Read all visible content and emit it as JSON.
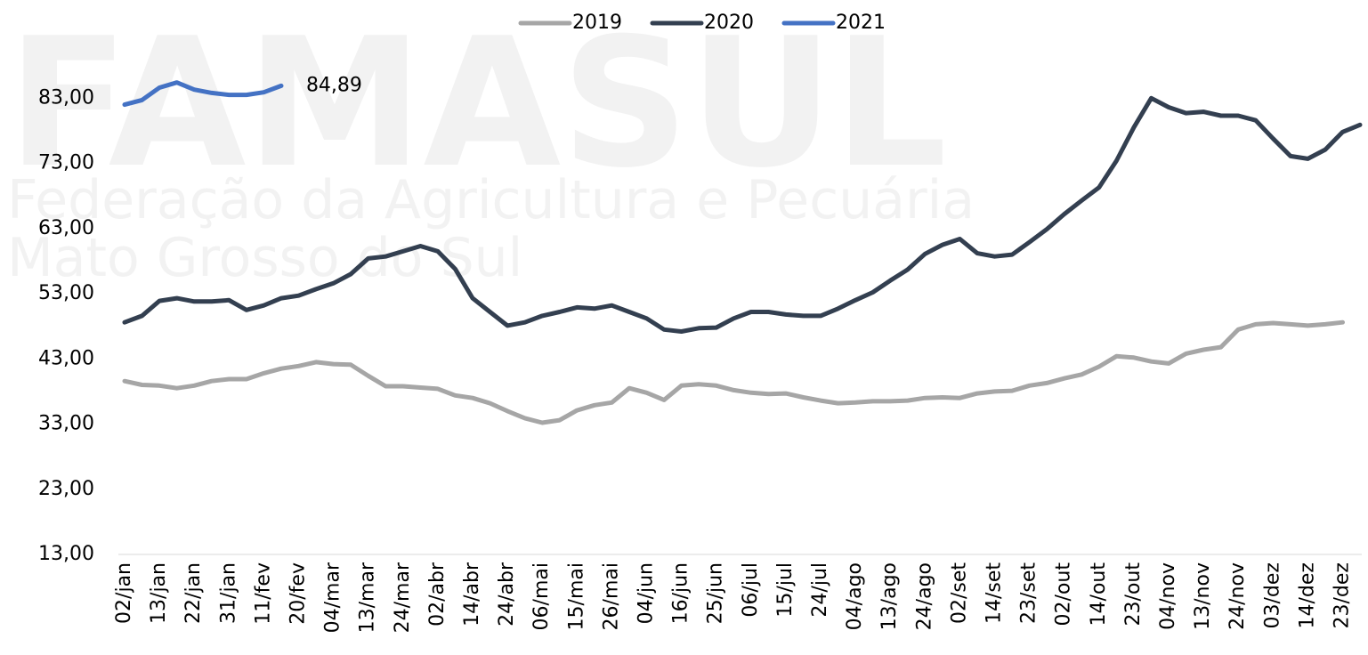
{
  "watermark": [
    "FAMASUL",
    "Federação da Agricultura e Pecuária",
    "Mato Grosso do Sul"
  ],
  "chart_data": {
    "type": "line",
    "categories": [
      "02/jan",
      null,
      "13/jan",
      null,
      "22/jan",
      null,
      "31/jan",
      null,
      "11/fev",
      null,
      "20/fev",
      null,
      "04/mar",
      null,
      "13/mar",
      null,
      "24/mar",
      null,
      "02/abr",
      null,
      "14/abr",
      null,
      "24/abr",
      null,
      "06/mai",
      null,
      "15/mai",
      null,
      "26/mai",
      null,
      "04/jun",
      null,
      "16/jun",
      null,
      "25/jun",
      null,
      "06/jul",
      null,
      "15/jul",
      null,
      "24/jul",
      null,
      "04/ago",
      null,
      "13/ago",
      null,
      "24/ago",
      null,
      "02/set",
      null,
      "14/set",
      null,
      "23/set",
      null,
      "02/out",
      null,
      "14/out",
      null,
      "23/out",
      null,
      "04/nov",
      null,
      "13/nov",
      null,
      "24/nov",
      null,
      "03/dez",
      null,
      "14/dez",
      null,
      "23/dez",
      null
    ],
    "series": [
      {
        "name": "2019",
        "color": "#a6a6a6",
        "values": [
          39.6,
          39.0,
          38.9,
          38.5,
          38.9,
          39.6,
          39.9,
          39.9,
          40.8,
          41.5,
          41.9,
          42.5,
          42.2,
          42.1,
          40.4,
          38.8,
          38.8,
          38.6,
          38.4,
          37.4,
          37.0,
          36.2,
          35.0,
          33.9,
          33.2,
          33.6,
          35.1,
          35.9,
          36.3,
          38.5,
          37.8,
          36.7,
          38.9,
          39.1,
          38.9,
          38.2,
          37.8,
          37.6,
          37.7,
          37.1,
          36.6,
          36.2,
          36.3,
          36.5,
          36.5,
          36.6,
          37.0,
          37.1,
          37.0,
          37.7,
          38.0,
          38.1,
          38.9,
          39.3,
          40.0,
          40.6,
          41.8,
          43.4,
          43.2,
          42.6,
          42.3,
          43.8,
          44.4,
          44.8,
          47.5,
          48.3,
          48.5,
          48.3,
          48.1,
          48.3,
          48.6,
          null
        ]
      },
      {
        "name": "2020",
        "color": "#333f50",
        "values": [
          48.6,
          49.6,
          51.9,
          52.3,
          51.8,
          51.8,
          52.0,
          50.5,
          51.2,
          52.3,
          52.7,
          53.7,
          54.6,
          56.0,
          58.4,
          58.7,
          59.5,
          60.3,
          59.5,
          56.8,
          52.3,
          50.2,
          48.1,
          48.6,
          49.6,
          50.2,
          50.9,
          50.7,
          51.2,
          50.2,
          49.2,
          47.5,
          47.2,
          47.7,
          47.8,
          49.2,
          50.2,
          50.2,
          49.8,
          49.6,
          49.6,
          50.7,
          52.0,
          53.2,
          55.0,
          56.7,
          59.1,
          60.5,
          61.4,
          59.2,
          58.7,
          59.0,
          60.9,
          62.9,
          65.2,
          67.3,
          69.3,
          73.4,
          78.5,
          83.0,
          81.6,
          80.7,
          80.9,
          80.3,
          80.3,
          79.6,
          76.8,
          74.1,
          73.7,
          75.1,
          77.8,
          78.9
        ]
      },
      {
        "name": "2021",
        "color": "#4472c4",
        "values": [
          82.0,
          82.7,
          84.6,
          85.4,
          84.3,
          83.8,
          83.5,
          83.5,
          83.9,
          84.89,
          null,
          null,
          null,
          null,
          null,
          null,
          null,
          null,
          null,
          null,
          null,
          null,
          null,
          null,
          null,
          null,
          null,
          null,
          null,
          null,
          null,
          null,
          null,
          null,
          null,
          null,
          null,
          null,
          null,
          null,
          null,
          null,
          null,
          null,
          null,
          null,
          null,
          null,
          null,
          null,
          null,
          null,
          null,
          null,
          null,
          null,
          null,
          null,
          null,
          null,
          null,
          null,
          null,
          null,
          null,
          null,
          null,
          null,
          null,
          null,
          null,
          null
        ],
        "value_labels": [
          null,
          null,
          null,
          null,
          null,
          null,
          null,
          null,
          null,
          "84,89",
          null,
          null,
          null,
          null,
          null,
          null,
          null,
          null,
          null,
          null,
          null,
          null,
          null,
          null,
          null,
          null,
          null,
          null,
          null,
          null,
          null,
          null,
          null,
          null,
          null,
          null,
          null,
          null,
          null,
          null,
          null,
          null,
          null,
          null,
          null,
          null,
          null,
          null,
          null,
          null,
          null,
          null,
          null,
          null,
          null,
          null,
          null,
          null,
          null,
          null,
          null,
          null,
          null,
          null,
          null,
          null,
          null,
          null,
          null,
          null,
          null,
          null
        ]
      }
    ],
    "ylim": [
      13,
      93
    ],
    "yticks": [
      {
        "value": 13,
        "label": "13,00"
      },
      {
        "value": 23,
        "label": "23,00"
      },
      {
        "value": 33,
        "label": "33,00"
      },
      {
        "value": 43,
        "label": "43,00"
      },
      {
        "value": 53,
        "label": "53,00"
      },
      {
        "value": 63,
        "label": "63,00"
      },
      {
        "value": 73,
        "label": "73,00"
      },
      {
        "value": 83,
        "label": "83,00"
      }
    ],
    "grid": false,
    "legend": "top"
  }
}
